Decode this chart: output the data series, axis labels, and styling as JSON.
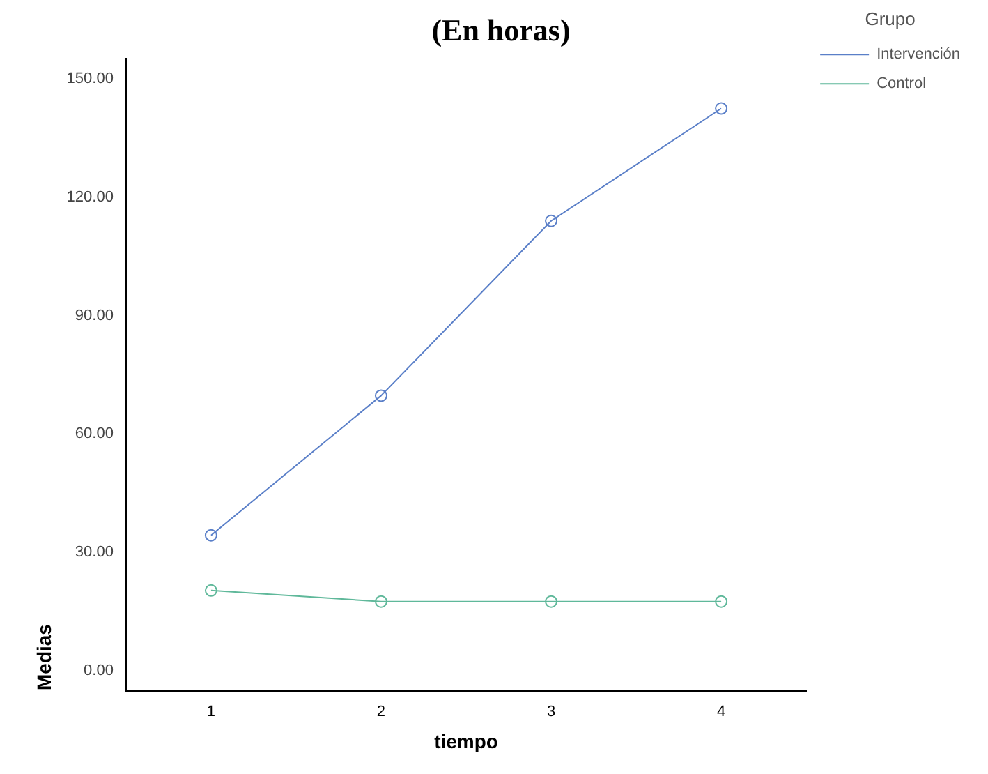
{
  "chart_data": {
    "type": "line",
    "title": "(En horas)",
    "xlabel": "tiempo",
    "ylabel": "Medias",
    "legend_title": "Grupo",
    "categories": [
      "1",
      "2",
      "3",
      "4"
    ],
    "series": [
      {
        "name": "Intervención",
        "color": "#5a7fc8",
        "values": [
          34.3,
          69.7,
          114,
          142.5
        ]
      },
      {
        "name": "Control",
        "color": "#5fb89a",
        "values": [
          20.3,
          17.5,
          17.5,
          17.5
        ]
      }
    ],
    "ylim": [
      -5,
      155
    ],
    "yticks": [
      {
        "value": 0,
        "label": "0.00"
      },
      {
        "value": 30,
        "label": "30.00"
      },
      {
        "value": 60,
        "label": "60.00"
      },
      {
        "value": 90,
        "label": "90.00"
      },
      {
        "value": 120,
        "label": "120.00"
      },
      {
        "value": 150,
        "label": "150.00"
      }
    ],
    "grid": false,
    "legend": "top right",
    "marker": "circle",
    "line_style": "solid"
  }
}
